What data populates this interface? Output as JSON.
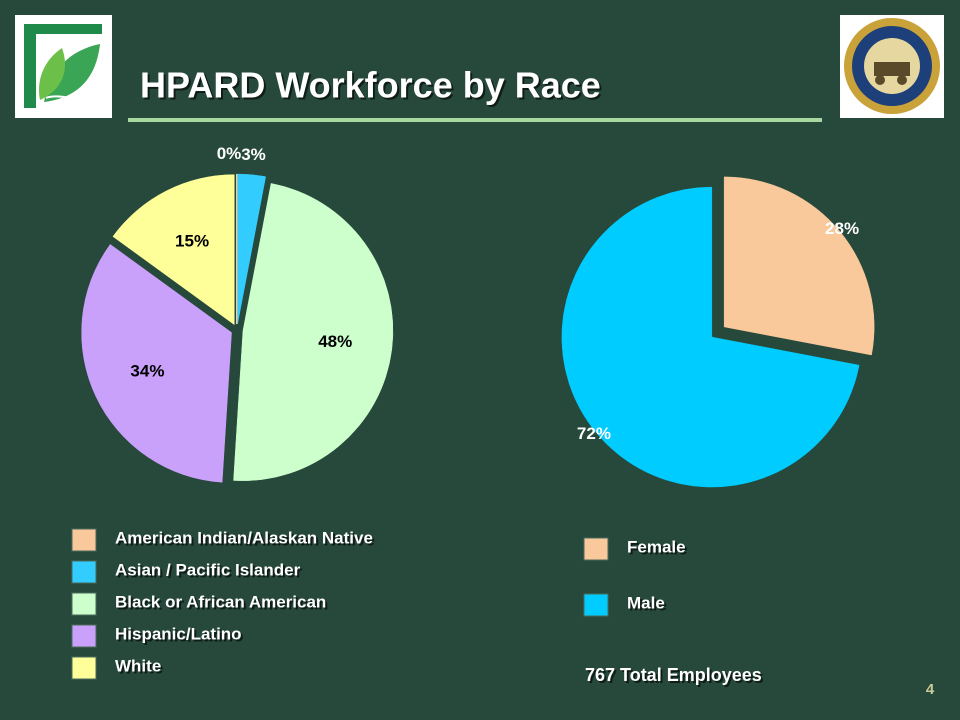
{
  "title": "HPARD Workforce by Race",
  "note": "767 Total Employees",
  "page_number": "4",
  "chart_data": [
    {
      "type": "pie",
      "categories": [
        "American Indian/Alaskan Native",
        "Asian / Pacific Islander",
        "Black or African American",
        "Hispanic/Latino",
        "White"
      ],
      "values": [
        0,
        3,
        48,
        34,
        15
      ],
      "value_labels": [
        "0%",
        "3%",
        "48%",
        "34%",
        "15%"
      ],
      "colors": [
        "#f9c89b",
        "#33ccff",
        "#ccffcc",
        "#c9a0fa",
        "#ffff99"
      ]
    },
    {
      "type": "pie",
      "categories": [
        "Female",
        "Male"
      ],
      "values": [
        28,
        72
      ],
      "value_labels": [
        "28%",
        "72%"
      ],
      "colors": [
        "#f9c89b",
        "#00ccff"
      ]
    }
  ]
}
